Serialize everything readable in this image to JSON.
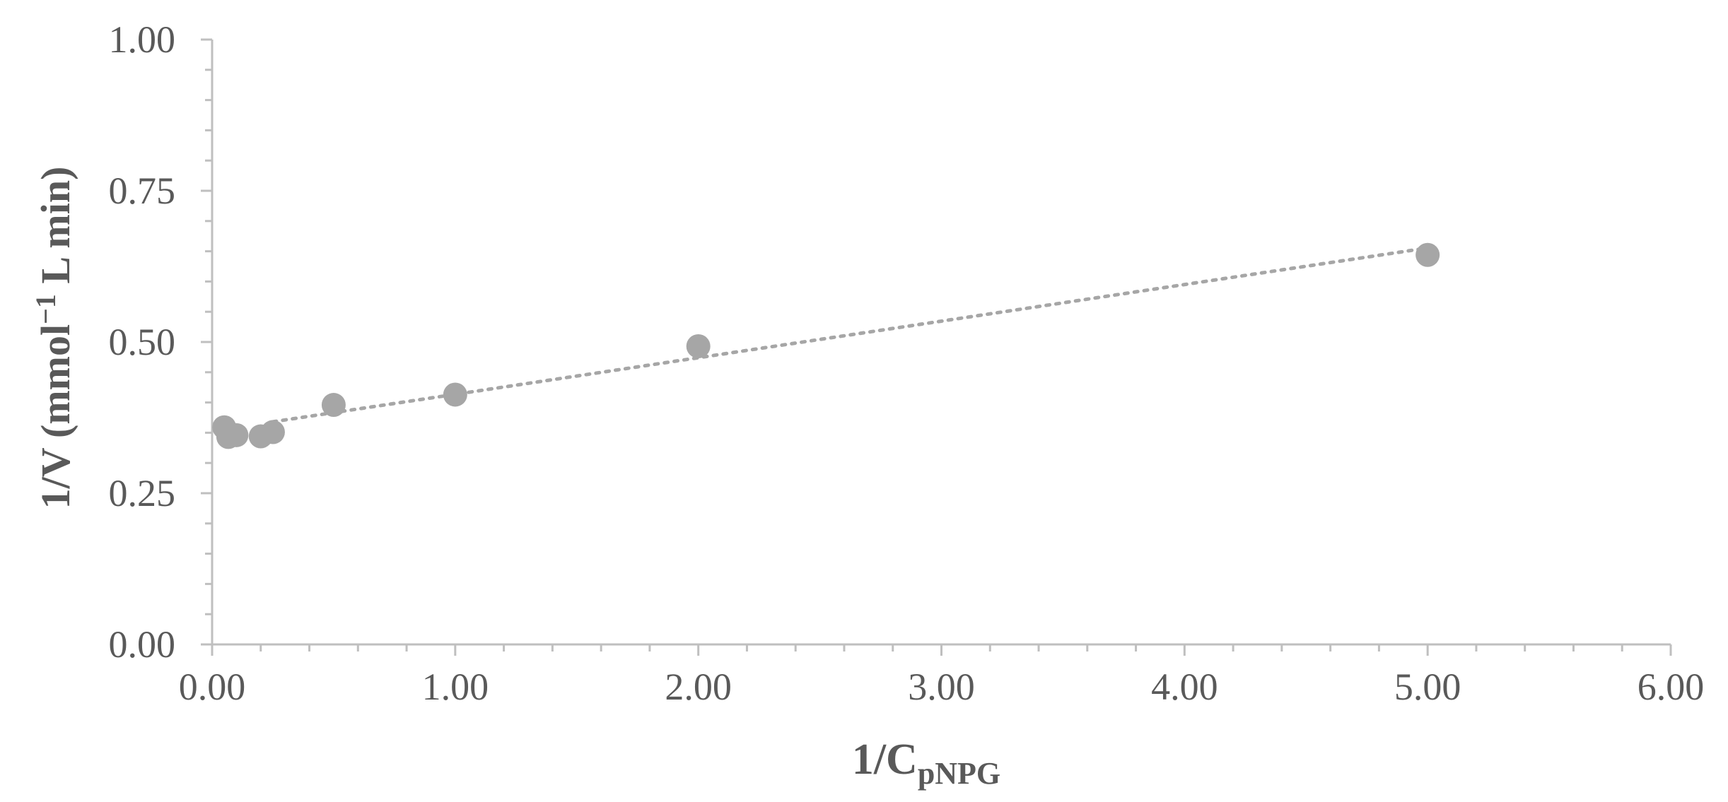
{
  "chart_data": {
    "type": "scatter",
    "title": "",
    "xlabel": "1/C",
    "xlabel_sub": "pNPG",
    "ylabel": "1/V (mmol",
    "ylabel_sup": "−1",
    "ylabel_rest": " L min)",
    "xlim": [
      0,
      6
    ],
    "ylim": [
      0,
      1
    ],
    "x_ticks": [
      "0.00",
      "1.00",
      "2.00",
      "3.00",
      "4.00",
      "5.00",
      "6.00"
    ],
    "y_ticks": [
      "0.00",
      "0.25",
      "0.50",
      "0.75",
      "1.00"
    ],
    "series": [
      {
        "points": [
          {
            "x": 0.05,
            "y": 0.359
          },
          {
            "x": 0.0667,
            "y": 0.343
          },
          {
            "x": 0.1,
            "y": 0.346
          },
          {
            "x": 0.2,
            "y": 0.344
          },
          {
            "x": 0.25,
            "y": 0.351
          },
          {
            "x": 0.5,
            "y": 0.396
          },
          {
            "x": 1.0,
            "y": 0.413
          },
          {
            "x": 2.0,
            "y": 0.493
          },
          {
            "x": 5.0,
            "y": 0.644
          }
        ],
        "trendline": {
          "type": "linear",
          "style": "dotted",
          "x_start": 0.25,
          "x_end": 5.0,
          "intercept": 0.353,
          "slope": 0.0605
        }
      }
    ],
    "grid": false,
    "legend": "none",
    "colors": {
      "marker": "#a6a6a6",
      "trendline": "#a6a6a6",
      "axis": "#bfbfbf",
      "text": "#595959"
    }
  }
}
